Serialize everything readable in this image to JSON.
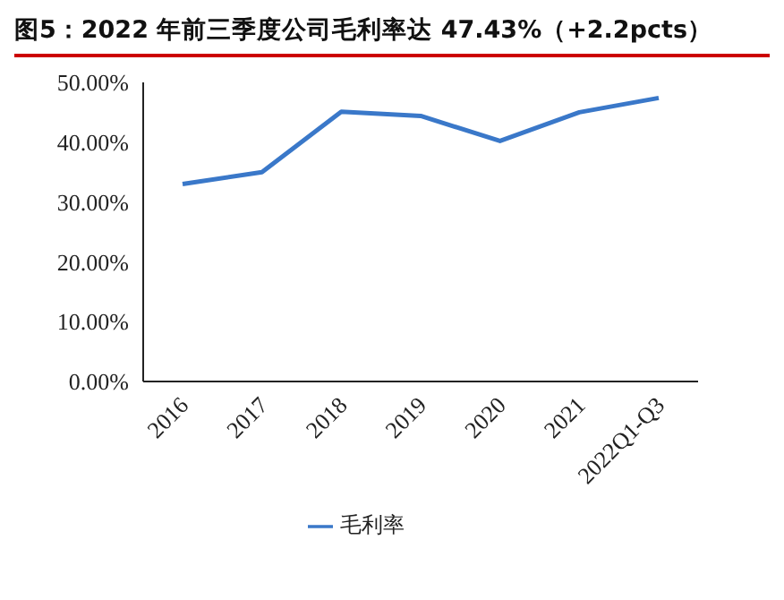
{
  "chart_data": {
    "type": "line",
    "title": "图5：2022 年前三季度公司毛利率达 47.43%（+2.2pcts）",
    "categories": [
      "2016",
      "2017",
      "2018",
      "2019",
      "2020",
      "2021",
      "2022Q1-Q3"
    ],
    "series": [
      {
        "name": "毛利率",
        "color": "#3a78c9",
        "values": [
          33.0,
          35.0,
          45.1,
          44.4,
          40.2,
          45.0,
          47.4
        ]
      }
    ],
    "ylim": [
      0,
      50
    ],
    "yticks": [
      {
        "value": 0,
        "label": "0.00%"
      },
      {
        "value": 10,
        "label": "10.00%"
      },
      {
        "value": 20,
        "label": "20.00%"
      },
      {
        "value": 30,
        "label": "30.00%"
      },
      {
        "value": 40,
        "label": "40.00%"
      },
      {
        "value": 50,
        "label": "50.00%"
      }
    ],
    "grid": false,
    "legend": "bottom",
    "marker": "none",
    "line_style": "solid"
  }
}
